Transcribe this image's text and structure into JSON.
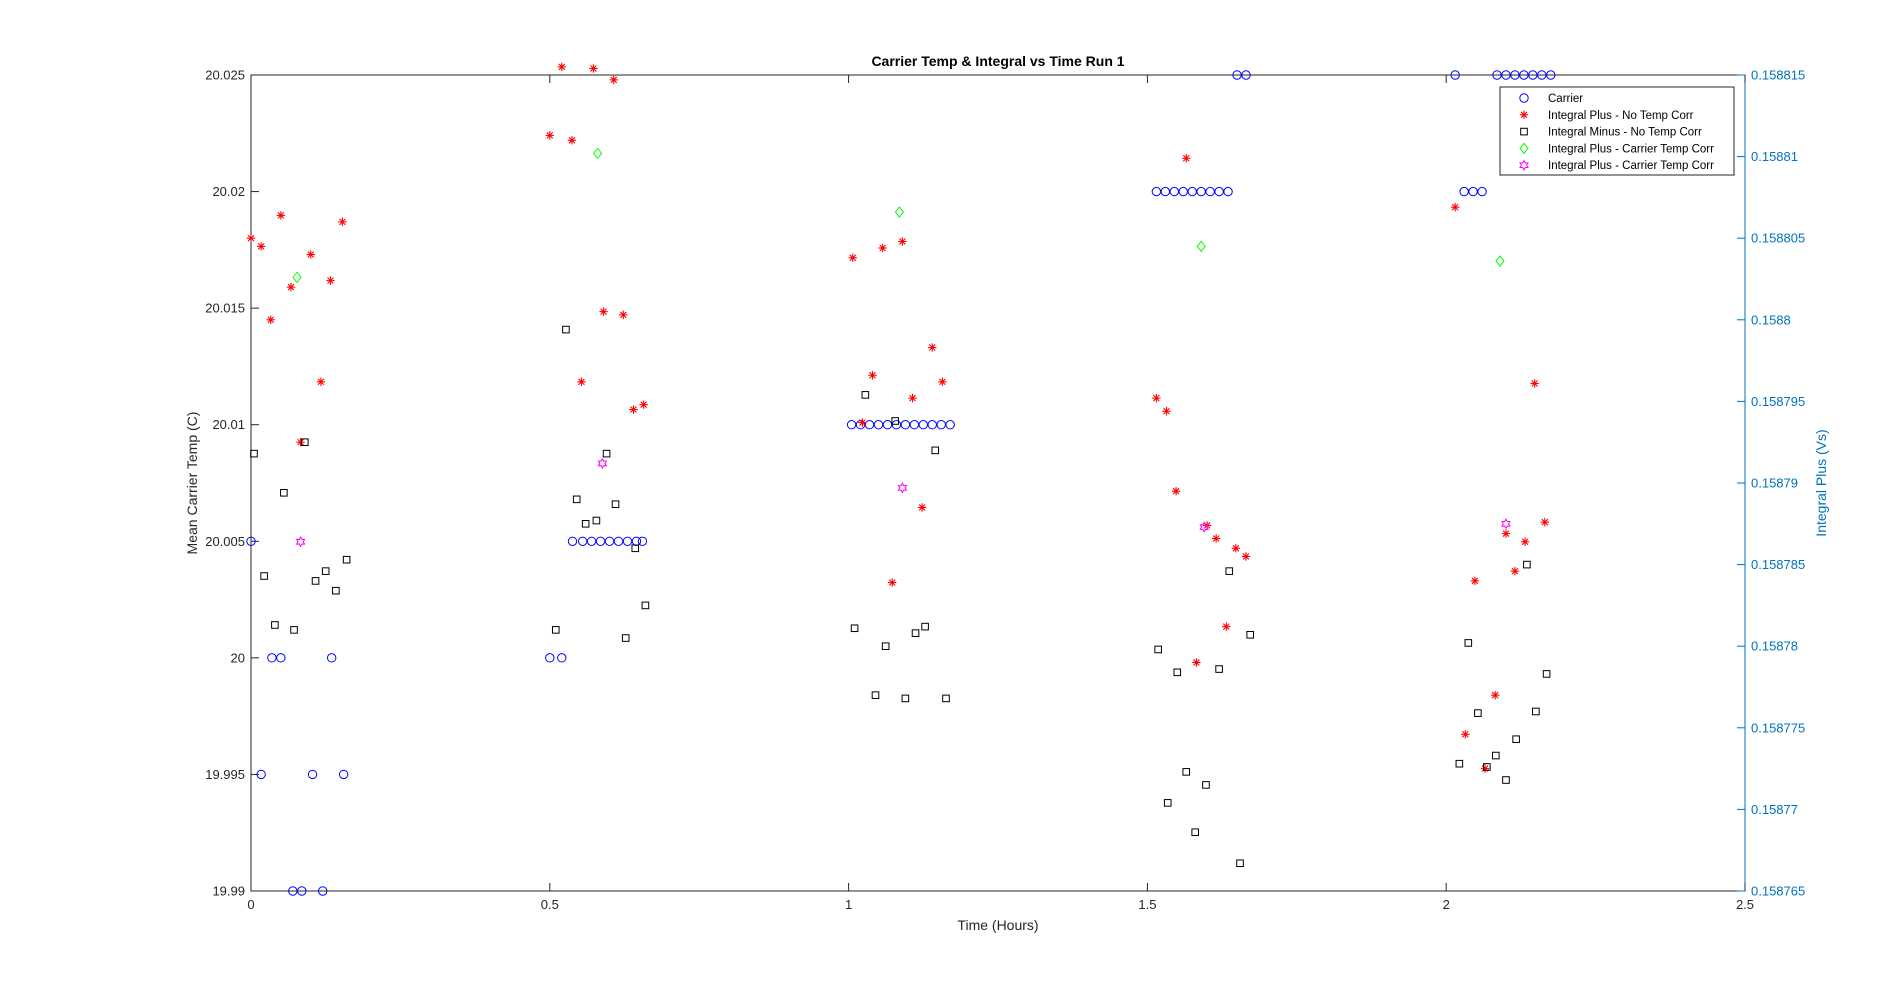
{
  "chart_data": {
    "type": "scatter",
    "title": "Carrier Temp & Integral vs Time Run 1",
    "xlabel": "Time (Hours)",
    "ylabel": "Mean Carrier Temp (C)",
    "y2label": "Integral Plus (Vs)",
    "xlim": [
      0,
      2.5
    ],
    "ylim": [
      19.99,
      20.025
    ],
    "y2lim": [
      0.158765,
      0.158815
    ],
    "x_ticks": [
      "0",
      "0.5",
      "1",
      "1.5",
      "2",
      "2.5"
    ],
    "y_ticks": [
      "19.99",
      "19.995",
      "20",
      "20.005",
      "20.01",
      "20.015",
      "20.02",
      "20.025"
    ],
    "y2_ticks": [
      "0.158765",
      "0.15877",
      "0.158775",
      "0.15878",
      "0.158785",
      "0.15879",
      "0.158795",
      "0.1588",
      "0.158805",
      "0.15881",
      "0.158815"
    ],
    "grid": false,
    "legend_position": "top-right",
    "colors": {
      "carrier": "#0000FF",
      "plus_no_corr": "#FF0000",
      "minus_no_corr": "#000000",
      "plus_carrier_diamond": "#00FF00",
      "plus_carrier_hex": "#FF00FF",
      "right_axis": "#0072BD"
    },
    "series": [
      {
        "name": "Carrier",
        "axis": "left",
        "marker": "circle",
        "color": "#0000FF",
        "points": [
          [
            0.0,
            20.005
          ],
          [
            0.017,
            19.995
          ],
          [
            0.035,
            20.0
          ],
          [
            0.05,
            20.0
          ],
          [
            0.07,
            19.99
          ],
          [
            0.085,
            19.99
          ],
          [
            0.103,
            19.995
          ],
          [
            0.12,
            19.99
          ],
          [
            0.135,
            20.0
          ],
          [
            0.155,
            19.995
          ],
          [
            0.5,
            20.0
          ],
          [
            0.52,
            20.0
          ],
          [
            0.538,
            20.005
          ],
          [
            0.555,
            20.005
          ],
          [
            0.57,
            20.005
          ],
          [
            0.585,
            20.005
          ],
          [
            0.6,
            20.005
          ],
          [
            0.615,
            20.005
          ],
          [
            0.63,
            20.005
          ],
          [
            0.645,
            20.005
          ],
          [
            0.655,
            20.005
          ],
          [
            1.005,
            20.01
          ],
          [
            1.02,
            20.01
          ],
          [
            1.035,
            20.01
          ],
          [
            1.05,
            20.01
          ],
          [
            1.065,
            20.01
          ],
          [
            1.08,
            20.01
          ],
          [
            1.095,
            20.01
          ],
          [
            1.11,
            20.01
          ],
          [
            1.125,
            20.01
          ],
          [
            1.14,
            20.01
          ],
          [
            1.155,
            20.01
          ],
          [
            1.17,
            20.01
          ],
          [
            1.515,
            20.02
          ],
          [
            1.53,
            20.02
          ],
          [
            1.545,
            20.02
          ],
          [
            1.56,
            20.02
          ],
          [
            1.575,
            20.02
          ],
          [
            1.59,
            20.02
          ],
          [
            1.605,
            20.02
          ],
          [
            1.62,
            20.02
          ],
          [
            1.635,
            20.02
          ],
          [
            1.65,
            20.025
          ],
          [
            1.665,
            20.025
          ],
          [
            2.015,
            20.025
          ],
          [
            2.03,
            20.02
          ],
          [
            2.045,
            20.02
          ],
          [
            2.06,
            20.02
          ],
          [
            2.085,
            20.025
          ],
          [
            2.1,
            20.025
          ],
          [
            2.115,
            20.025
          ],
          [
            2.13,
            20.025
          ],
          [
            2.145,
            20.025
          ],
          [
            2.16,
            20.025
          ],
          [
            2.175,
            20.025
          ]
        ]
      },
      {
        "name": "Integral Plus -  No Temp Corr",
        "axis": "right",
        "marker": "asterisk",
        "color": "#FF0000",
        "points": [
          [
            0.0,
            0.158805
          ],
          [
            0.017,
            0.1588045
          ],
          [
            0.033,
            0.1588
          ],
          [
            0.05,
            0.1588064
          ],
          [
            0.067,
            0.158802
          ],
          [
            0.083,
            0.1587925
          ],
          [
            0.1,
            0.158804
          ],
          [
            0.117,
            0.1587962
          ],
          [
            0.133,
            0.1588024
          ],
          [
            0.153,
            0.158806
          ],
          [
            0.5,
            0.1588113
          ],
          [
            0.52,
            0.1588155
          ],
          [
            0.537,
            0.158811
          ],
          [
            0.553,
            0.1587962
          ],
          [
            0.573,
            0.1588154
          ],
          [
            0.59,
            0.1588005
          ],
          [
            0.607,
            0.1588147
          ],
          [
            0.623,
            0.1588003
          ],
          [
            0.64,
            0.1587945
          ],
          [
            0.657,
            0.1587948
          ],
          [
            1.007,
            0.1588038
          ],
          [
            1.023,
            0.1587937
          ],
          [
            1.04,
            0.1587966
          ],
          [
            1.057,
            0.1588044
          ],
          [
            1.073,
            0.1587839
          ],
          [
            1.09,
            0.1588048
          ],
          [
            1.107,
            0.1587952
          ],
          [
            1.123,
            0.1587885
          ],
          [
            1.14,
            0.1587983
          ],
          [
            1.157,
            0.1587962
          ],
          [
            1.515,
            0.1587952
          ],
          [
            1.532,
            0.1587944
          ],
          [
            1.548,
            0.1587895
          ],
          [
            1.565,
            0.1588099
          ],
          [
            1.582,
            0.158779
          ],
          [
            1.6,
            0.1587874
          ],
          [
            1.615,
            0.1587866
          ],
          [
            1.632,
            0.1587812
          ],
          [
            1.648,
            0.158786
          ],
          [
            1.665,
            0.1587855
          ],
          [
            2.015,
            0.1588069
          ],
          [
            2.032,
            0.1587746
          ],
          [
            2.048,
            0.158784
          ],
          [
            2.065,
            0.1587725
          ],
          [
            2.082,
            0.158777
          ],
          [
            2.1,
            0.1587869
          ],
          [
            2.115,
            0.1587846
          ],
          [
            2.132,
            0.1587864
          ],
          [
            2.148,
            0.1587961
          ],
          [
            2.165,
            0.1587876
          ]
        ]
      },
      {
        "name": "Integral Minus -  No Temp Corr",
        "axis": "right",
        "marker": "square",
        "color": "#000000",
        "points": [
          [
            0.005,
            0.1587918
          ],
          [
            0.022,
            0.1587843
          ],
          [
            0.04,
            0.1587813
          ],
          [
            0.055,
            0.1587894
          ],
          [
            0.072,
            0.158781
          ],
          [
            0.09,
            0.1587925
          ],
          [
            0.108,
            0.158784
          ],
          [
            0.125,
            0.1587846
          ],
          [
            0.142,
            0.1587834
          ],
          [
            0.16,
            0.1587853
          ],
          [
            0.51,
            0.158781
          ],
          [
            0.527,
            0.1587994
          ],
          [
            0.545,
            0.158789
          ],
          [
            0.56,
            0.1587875
          ],
          [
            0.578,
            0.1587877
          ],
          [
            0.595,
            0.1587918
          ],
          [
            0.61,
            0.1587887
          ],
          [
            0.627,
            0.1587805
          ],
          [
            0.643,
            0.158786
          ],
          [
            0.66,
            0.1587825
          ],
          [
            1.01,
            0.1587811
          ],
          [
            1.028,
            0.1587954
          ],
          [
            1.045,
            0.158777
          ],
          [
            1.062,
            0.15878
          ],
          [
            1.078,
            0.1587938
          ],
          [
            1.095,
            0.1587768
          ],
          [
            1.112,
            0.1587808
          ],
          [
            1.128,
            0.1587812
          ],
          [
            1.145,
            0.158792
          ],
          [
            1.163,
            0.1587768
          ],
          [
            1.518,
            0.1587798
          ],
          [
            1.534,
            0.1587704
          ],
          [
            1.55,
            0.1587784
          ],
          [
            1.565,
            0.1587723
          ],
          [
            1.58,
            0.1587686
          ],
          [
            1.598,
            0.1587715
          ],
          [
            1.62,
            0.1587786
          ],
          [
            1.637,
            0.1587846
          ],
          [
            1.655,
            0.1587667
          ],
          [
            1.672,
            0.1587807
          ],
          [
            2.022,
            0.1587728
          ],
          [
            2.037,
            0.1587802
          ],
          [
            2.053,
            0.1587759
          ],
          [
            2.068,
            0.1587726
          ],
          [
            2.083,
            0.1587733
          ],
          [
            2.1,
            0.1587718
          ],
          [
            2.117,
            0.1587743
          ],
          [
            2.135,
            0.158785
          ],
          [
            2.15,
            0.158776
          ],
          [
            2.168,
            0.1587783
          ]
        ]
      },
      {
        "name": "Integral Plus -  Carrier Temp Corr",
        "axis": "right",
        "marker": "diamond",
        "color": "#00FF00",
        "points": [
          [
            0.077,
            0.1588026
          ],
          [
            0.58,
            0.1588102
          ],
          [
            1.085,
            0.1588066
          ],
          [
            1.59,
            0.1588045
          ],
          [
            2.09,
            0.1588036
          ]
        ]
      },
      {
        "name": "Integral Plus -  Carrier Temp Corr",
        "axis": "right",
        "marker": "hexagram",
        "color": "#FF00FF",
        "points": [
          [
            0.083,
            0.1587864
          ],
          [
            0.588,
            0.1587912
          ],
          [
            1.09,
            0.1587897
          ],
          [
            1.595,
            0.1587873
          ],
          [
            2.1,
            0.1587875
          ]
        ]
      }
    ]
  }
}
